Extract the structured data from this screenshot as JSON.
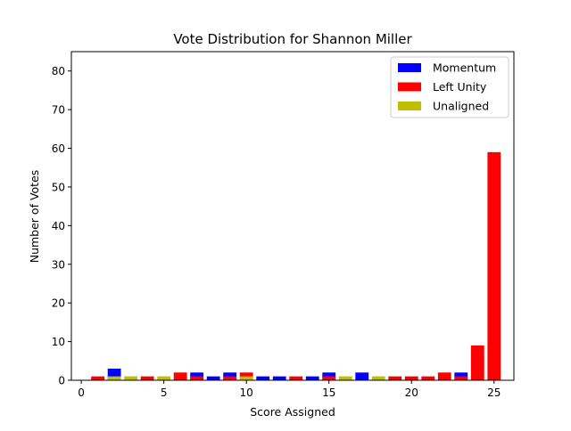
{
  "chart_data": {
    "type": "bar",
    "title": "Vote Distribution for Shannon Miller",
    "xlabel": "Score Assigned",
    "ylabel": "Number of Votes",
    "xlim": [
      -0.6,
      26.2
    ],
    "ylim": [
      0,
      85
    ],
    "xticks": [
      0,
      5,
      10,
      15,
      20,
      25
    ],
    "yticks": [
      0,
      10,
      20,
      30,
      40,
      50,
      60,
      70,
      80
    ],
    "grid": false,
    "legend_position": "top-right",
    "series": [
      {
        "name": "Momentum",
        "color": "#0000ff",
        "x": [
          2,
          7,
          8,
          9,
          11,
          12,
          14,
          15,
          17,
          23
        ],
        "values": [
          3,
          2,
          1,
          2,
          1,
          1,
          1,
          2,
          2,
          2
        ]
      },
      {
        "name": "Left Unity",
        "color": "#ff0000",
        "x": [
          1,
          4,
          6,
          7,
          9,
          10,
          13,
          15,
          19,
          20,
          21,
          22,
          23,
          24,
          25
        ],
        "values": [
          1,
          1,
          2,
          1,
          1,
          2,
          1,
          1,
          1,
          1,
          1,
          2,
          1,
          9,
          59
        ]
      },
      {
        "name": "Unaligned",
        "color": "#bfbf00",
        "x": [
          2,
          3,
          5,
          10,
          16,
          18
        ],
        "values": [
          1,
          1,
          1,
          1,
          1,
          1
        ]
      }
    ]
  }
}
